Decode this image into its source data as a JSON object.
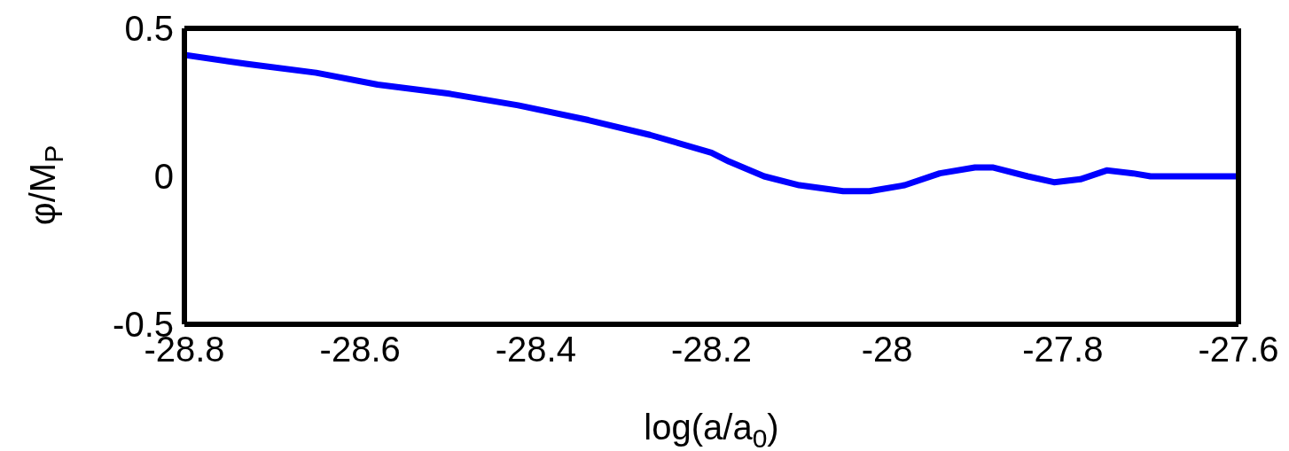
{
  "chart_data": {
    "type": "line",
    "xlabel": "log(a/a$_{0}$)",
    "ylabel": "φ/M$_{P}$",
    "x": [
      -28.8,
      -28.73,
      -28.65,
      -28.58,
      -28.5,
      -28.42,
      -28.34,
      -28.27,
      -28.2,
      -28.18,
      -28.14,
      -28.1,
      -28.05,
      -28.02,
      -27.98,
      -27.94,
      -27.9,
      -27.88,
      -27.84,
      -27.81,
      -27.78,
      -27.75,
      -27.72,
      -27.7,
      -27.66,
      -27.6
    ],
    "series": [
      {
        "color": "#0000ff",
        "values": [
          0.41,
          0.38,
          0.35,
          0.31,
          0.28,
          0.24,
          0.19,
          0.14,
          0.08,
          0.05,
          0.0,
          -0.03,
          -0.05,
          -0.05,
          -0.03,
          0.01,
          0.03,
          0.03,
          0.0,
          -0.02,
          -0.01,
          0.02,
          0.01,
          0.0,
          0.0,
          0.0
        ]
      }
    ],
    "xlim": [
      -28.8,
      -27.6
    ],
    "xticks": [
      -28.8,
      -28.6,
      -28.4,
      -28.2,
      -28,
      -27.8,
      -27.6
    ],
    "ylim": [
      -0.5,
      0.5
    ],
    "yticks": [
      -0.5,
      0,
      0.5
    ],
    "grid": false,
    "legend": false,
    "marker": "none",
    "line_style": "solid"
  }
}
